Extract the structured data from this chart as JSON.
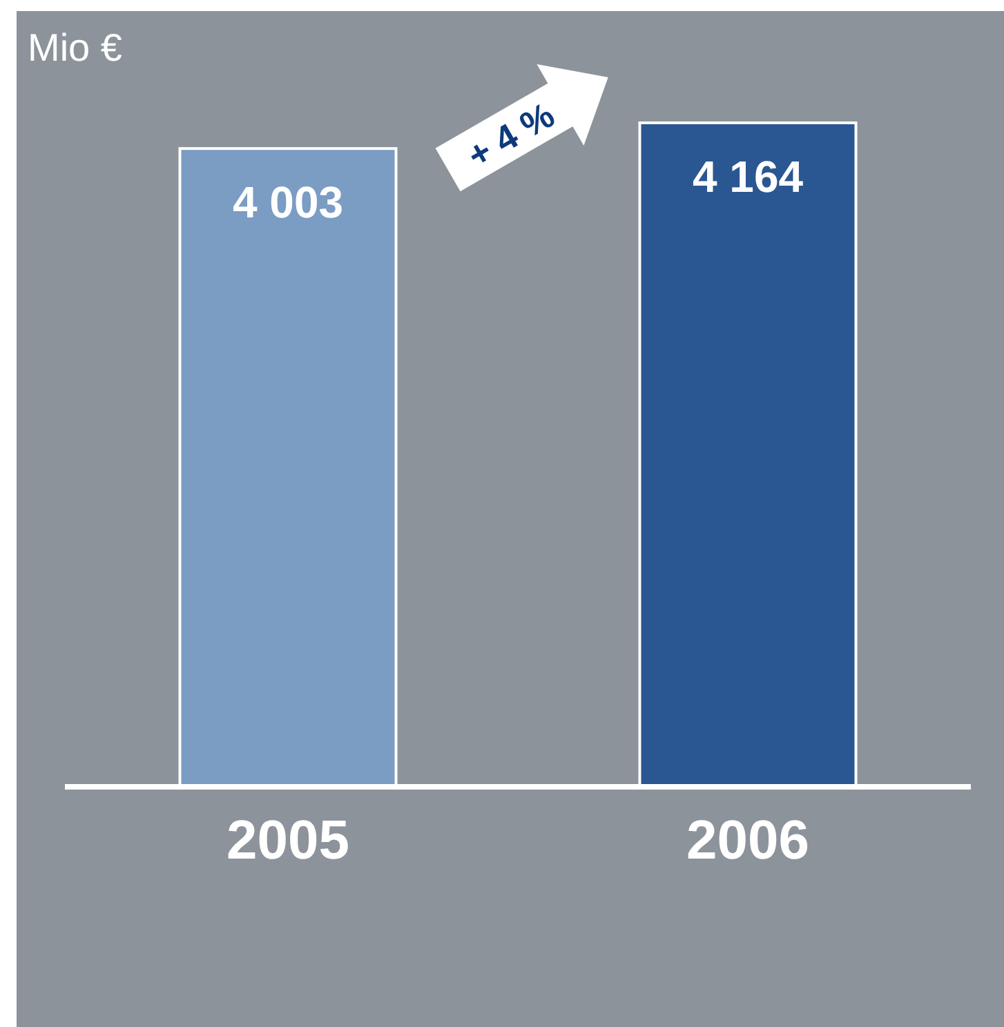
{
  "chart_data": {
    "type": "bar",
    "ylabel": "Mio €",
    "categories": [
      "2005",
      "2006"
    ],
    "values": [
      4003,
      4164
    ],
    "colors": [
      "#7b9cc3",
      "#2a5791"
    ],
    "value_labels": [
      "4 003",
      "4 164"
    ],
    "annotations": [
      "+ 4 %"
    ]
  }
}
